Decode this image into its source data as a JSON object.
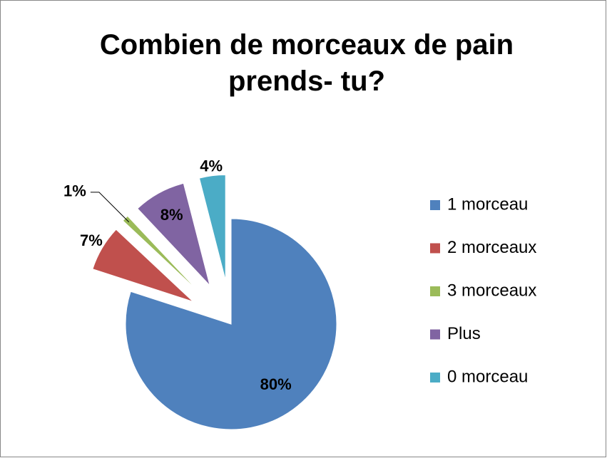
{
  "chart_data": {
    "type": "pie",
    "title": "Combien de morceaux de pain prends- tu?",
    "categories": [
      "1 morceau",
      "2 morceaux",
      "3 morceaux",
      "Plus",
      "0 morceau"
    ],
    "values": [
      80,
      7,
      1,
      8,
      4
    ],
    "value_labels": [
      "80%",
      "7%",
      "1%",
      "8%",
      "4%"
    ],
    "colors": [
      "#4f81bd",
      "#c0504d",
      "#9bbb59",
      "#8064a2",
      "#4bacc6"
    ],
    "legend": "right"
  }
}
